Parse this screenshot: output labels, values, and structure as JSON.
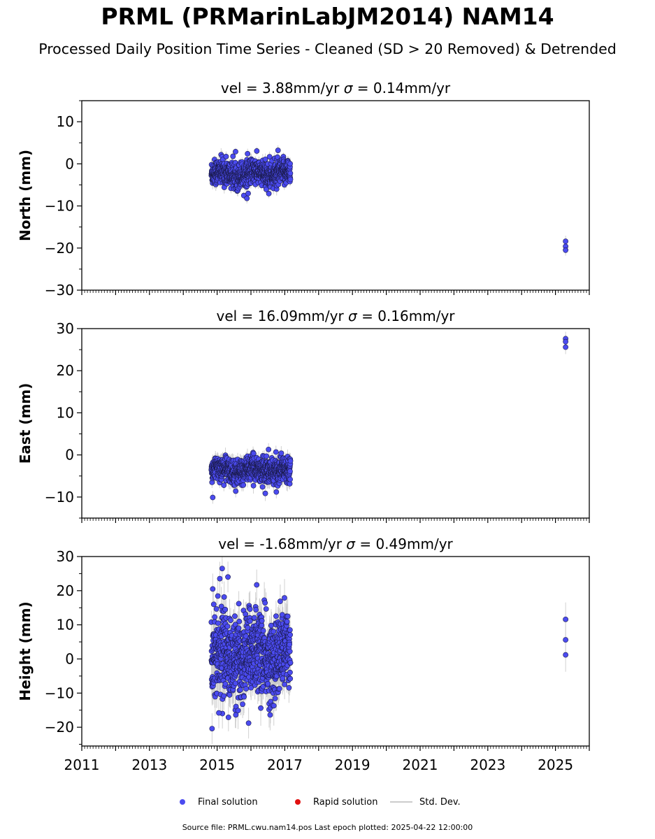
{
  "chart_data": {
    "title": "PRML (PRMarinLabJM2014) NAM14",
    "subtitle": "Processed Daily Position Time Series - Cleaned (SD > 20 Removed) & Detrended",
    "x_ticks": [
      "2011",
      "2013",
      "2015",
      "2017",
      "2019",
      "2021",
      "2023",
      "2025"
    ],
    "xlim": [
      2011.0,
      2026.0
    ],
    "legend": {
      "placement": "bottom-center",
      "final_label": "Final solution",
      "rapid_label": "Rapid solution",
      "std_label": "Std. Dev.",
      "final_color": "#4b4bf0",
      "rapid_color": "#e11010",
      "std_color": "#cccccc"
    },
    "footer": "Source file: PRML.cwu.nam14.pos  Last epoch plotted: 2025-04-22 12:00:00",
    "panels": [
      {
        "type": "scatter",
        "component": "north",
        "ylabel": "North (mm)",
        "vel_text": "vel = 3.88mm/yr",
        "sigma_text": "= 0.14mm/yr",
        "sigma_symbol": "σ",
        "ylim": [
          -30,
          15
        ],
        "yticks": [
          10,
          0,
          -10,
          -20,
          -30
        ],
        "yticklabels": [
          "10",
          "0",
          "−10",
          "−20",
          "−30"
        ],
        "ytick_minor_step": 5,
        "main_period": [
          2014.83,
          2017.17
        ],
        "main_center": -2.3,
        "main_spread": 1.5,
        "main_sd": 1.2,
        "outliers": [
          {
            "x": 2015.88,
            "y": -8.2
          },
          {
            "x": 2015.9,
            "y": 2.4
          },
          {
            "x": 2016.8,
            "y": 3.2
          },
          {
            "x": 2016.55,
            "y": 1.7
          }
        ],
        "late_points": [
          {
            "x": 2025.3,
            "y": -18.4
          },
          {
            "x": 2025.3,
            "y": -19.6
          },
          {
            "x": 2025.3,
            "y": -20.5
          }
        ]
      },
      {
        "type": "scatter",
        "component": "east",
        "ylabel": "East (mm)",
        "vel_text": "vel = 16.09mm/yr",
        "sigma_text": "= 0.16mm/yr",
        "sigma_symbol": "σ",
        "ylim": [
          -15,
          30
        ],
        "yticks": [
          30,
          20,
          10,
          0,
          -10
        ],
        "yticklabels": [
          "30",
          "20",
          "10",
          "0",
          "−10"
        ],
        "ytick_minor_step": 5,
        "main_period": [
          2014.83,
          2017.17
        ],
        "main_center": -3.6,
        "main_spread": 1.4,
        "main_sd": 1.5,
        "outliers": [
          {
            "x": 2014.87,
            "y": -10.1
          },
          {
            "x": 2016.52,
            "y": 1.3
          },
          {
            "x": 2016.75,
            "y": -8.8
          },
          {
            "x": 2015.55,
            "y": -8.6
          }
        ],
        "late_points": [
          {
            "x": 2025.3,
            "y": 27.6
          },
          {
            "x": 2025.3,
            "y": 26.9
          },
          {
            "x": 2025.3,
            "y": 25.6
          }
        ]
      },
      {
        "type": "scatter",
        "component": "height",
        "ylabel": "Height (mm)",
        "vel_text": "vel = -1.68mm/yr",
        "sigma_text": "= 0.49mm/yr",
        "sigma_symbol": "σ",
        "ylim": [
          -25.5,
          30
        ],
        "yticks": [
          30,
          20,
          10,
          0,
          -10,
          -20
        ],
        "yticklabels": [
          "30",
          "20",
          "10",
          "0",
          "−10",
          "−20"
        ],
        "ytick_minor_step": 5,
        "main_period": [
          2014.83,
          2017.17
        ],
        "main_center": 1.0,
        "main_spread": 6.0,
        "main_sd": 4.5,
        "outliers": [
          {
            "x": 2014.85,
            "y": -20.4
          },
          {
            "x": 2014.87,
            "y": 20.5
          },
          {
            "x": 2015.15,
            "y": 26.5
          },
          {
            "x": 2015.32,
            "y": 24.0
          },
          {
            "x": 2015.93,
            "y": -18.8
          },
          {
            "x": 2016.17,
            "y": 21.7
          },
          {
            "x": 2014.9,
            "y": 16.0
          },
          {
            "x": 2015.05,
            "y": -15.8
          }
        ],
        "late_points": [
          {
            "x": 2025.3,
            "y": 11.6
          },
          {
            "x": 2025.3,
            "y": 5.6
          },
          {
            "x": 2025.3,
            "y": 1.2
          }
        ]
      }
    ]
  }
}
